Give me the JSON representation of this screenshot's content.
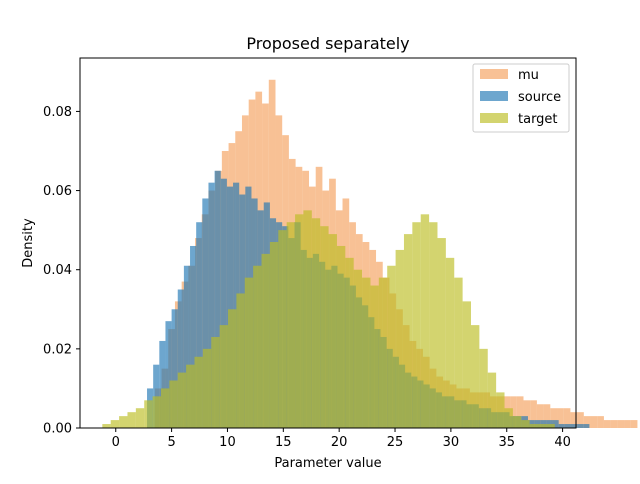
{
  "chart_data": {
    "type": "histogram",
    "title": "Proposed separately",
    "xlabel": "Parameter value",
    "ylabel": "Density",
    "xlim": [
      -3.2,
      41.2
    ],
    "ylim": [
      0,
      0.0935
    ],
    "xticks": [
      0,
      5,
      10,
      15,
      20,
      25,
      30,
      35,
      40
    ],
    "yticks": [
      0.0,
      0.02,
      0.04,
      0.06,
      0.08
    ],
    "ytick_labels": [
      "0.00",
      "0.02",
      "0.04",
      "0.06",
      "0.08"
    ],
    "legend_position": "top-right",
    "alpha": 0.65,
    "series": [
      {
        "name": "mu",
        "color": "#f5a05c",
        "bin_start": 3.5,
        "bin_width": 0.6,
        "values": [
          0.01,
          0.015,
          0.025,
          0.032,
          0.037,
          0.041,
          0.048,
          0.054,
          0.06,
          0.065,
          0.07,
          0.072,
          0.075,
          0.079,
          0.083,
          0.085,
          0.082,
          0.088,
          0.079,
          0.074,
          0.068,
          0.066,
          0.065,
          0.061,
          0.066,
          0.06,
          0.063,
          0.055,
          0.058,
          0.052,
          0.049,
          0.047,
          0.045,
          0.042,
          0.038,
          0.034,
          0.03,
          0.026,
          0.022,
          0.02,
          0.018,
          0.015,
          0.013,
          0.012,
          0.011,
          0.01,
          0.01,
          0.009,
          0.009,
          0.009,
          0.008,
          0.008,
          0.008,
          0.008,
          0.008,
          0.007,
          0.007,
          0.006,
          0.006,
          0.005,
          0.005,
          0.005,
          0.004,
          0.004,
          0.003,
          0.003,
          0.003,
          0.002,
          0.002,
          0.002,
          0.002,
          0.002
        ]
      },
      {
        "name": "source",
        "color": "#1f77b4",
        "bin_start": 2.8,
        "bin_width": 0.55,
        "values": [
          0.01,
          0.016,
          0.022,
          0.027,
          0.03,
          0.035,
          0.041,
          0.046,
          0.052,
          0.058,
          0.062,
          0.065,
          0.063,
          0.061,
          0.062,
          0.059,
          0.061,
          0.058,
          0.055,
          0.057,
          0.053,
          0.052,
          0.051,
          0.048,
          0.052,
          0.045,
          0.043,
          0.044,
          0.042,
          0.04,
          0.041,
          0.039,
          0.038,
          0.036,
          0.033,
          0.031,
          0.028,
          0.025,
          0.023,
          0.02,
          0.018,
          0.016,
          0.014,
          0.013,
          0.012,
          0.011,
          0.01,
          0.009,
          0.008,
          0.008,
          0.007,
          0.007,
          0.006,
          0.006,
          0.005,
          0.005,
          0.004,
          0.004,
          0.004,
          0.003,
          0.003,
          0.003,
          0.002,
          0.002,
          0.002,
          0.002,
          0.002,
          0.001,
          0.001,
          0.001,
          0.001,
          0.001
        ]
      },
      {
        "name": "target",
        "color": "#bcbd22",
        "bin_start": -1.2,
        "bin_width": 0.75,
        "values": [
          0.001,
          0.002,
          0.003,
          0.004,
          0.005,
          0.007,
          0.008,
          0.01,
          0.012,
          0.014,
          0.016,
          0.018,
          0.02,
          0.023,
          0.026,
          0.03,
          0.034,
          0.038,
          0.041,
          0.044,
          0.047,
          0.05,
          0.052,
          0.054,
          0.055,
          0.053,
          0.051,
          0.049,
          0.046,
          0.043,
          0.04,
          0.038,
          0.036,
          0.038,
          0.041,
          0.045,
          0.049,
          0.052,
          0.054,
          0.052,
          0.048,
          0.043,
          0.038,
          0.032,
          0.026,
          0.02,
          0.014,
          0.009,
          0.005,
          0.003,
          0.002,
          0.001,
          0.001,
          0.001
        ]
      }
    ]
  }
}
